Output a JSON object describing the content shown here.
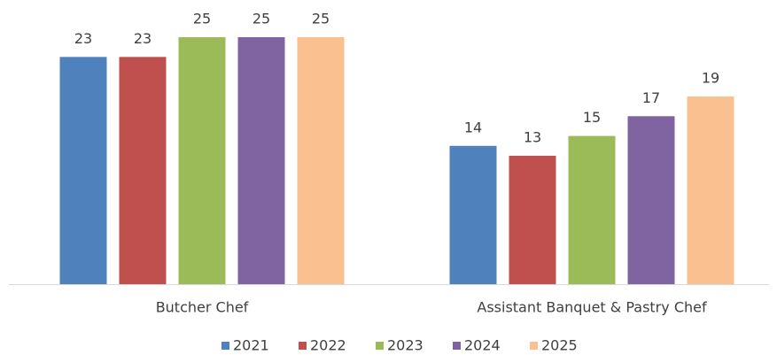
{
  "chart_data": {
    "type": "bar",
    "categories": [
      "Butcher Chef",
      "Assistant Banquet & Pastry Chef"
    ],
    "series": [
      {
        "name": "2021",
        "color": "#4f81bd",
        "values": [
          23,
          14
        ]
      },
      {
        "name": "2022",
        "color": "#c0504d",
        "values": [
          23,
          13
        ]
      },
      {
        "name": "2023",
        "color": "#9bbb59",
        "values": [
          25,
          15
        ]
      },
      {
        "name": "2024",
        "color": "#8064a2",
        "values": [
          25,
          17
        ]
      },
      {
        "name": "2025",
        "color": "#fac090",
        "values": [
          25,
          19
        ]
      }
    ],
    "legend": "bottom"
  }
}
